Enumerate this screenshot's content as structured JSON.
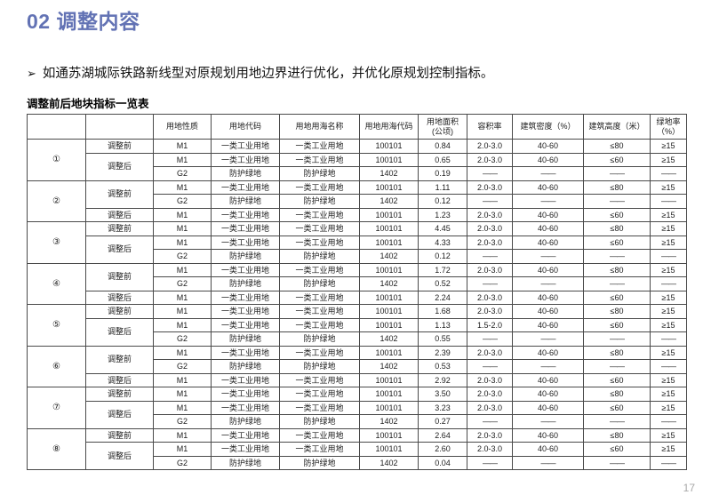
{
  "slide": {
    "title": "02 调整内容",
    "bullet_char": "➢",
    "bullet_text": "如通苏湖城际铁路新线型对原规划用地边界进行优化，并优化原规划控制指标。",
    "table_title": "调整前后地块指标一览表",
    "page_number": "17"
  },
  "colors": {
    "title_blue": "#6272b4",
    "table_border": "#4a4a4a",
    "page_number_gray": "#a8a8a8",
    "background": "#ffffff"
  },
  "table": {
    "headers": [
      "",
      "",
      "用地性质",
      "用地代码",
      "用地用海名称",
      "用地用海代码",
      "用地面积\n(公顷)",
      "容积率",
      "建筑密度（%）",
      "建筑高度（米）",
      "绿地率\n（%）"
    ],
    "dash": "——",
    "groups": [
      {
        "id": "①",
        "sections": [
          {
            "label": "调整前",
            "rows": [
              [
                "M1",
                "一类工业用地",
                "一类工业用地",
                "100101",
                "0.84",
                "2.0-3.0",
                "40-60",
                "≤80",
                "≥15"
              ]
            ]
          },
          {
            "label": "调整后",
            "rows": [
              [
                "M1",
                "一类工业用地",
                "一类工业用地",
                "100101",
                "0.65",
                "2.0-3.0",
                "40-60",
                "≤60",
                "≥15"
              ],
              [
                "G2",
                "防护绿地",
                "防护绿地",
                "1402",
                "0.19",
                "——",
                "——",
                "——",
                "——"
              ]
            ]
          }
        ]
      },
      {
        "id": "②",
        "sections": [
          {
            "label": "调整前",
            "rows": [
              [
                "M1",
                "一类工业用地",
                "一类工业用地",
                "100101",
                "1.11",
                "2.0-3.0",
                "40-60",
                "≤80",
                "≥15"
              ],
              [
                "G2",
                "防护绿地",
                "防护绿地",
                "1402",
                "0.12",
                "——",
                "——",
                "——",
                "——"
              ]
            ]
          },
          {
            "label": "调整后",
            "rows": [
              [
                "M1",
                "一类工业用地",
                "一类工业用地",
                "100101",
                "1.23",
                "2.0-3.0",
                "40-60",
                "≤60",
                "≥15"
              ]
            ]
          }
        ]
      },
      {
        "id": "③",
        "sections": [
          {
            "label": "调整前",
            "rows": [
              [
                "M1",
                "一类工业用地",
                "一类工业用地",
                "100101",
                "4.45",
                "2.0-3.0",
                "40-60",
                "≤80",
                "≥15"
              ]
            ]
          },
          {
            "label": "调整后",
            "rows": [
              [
                "M1",
                "一类工业用地",
                "一类工业用地",
                "100101",
                "4.33",
                "2.0-3.0",
                "40-60",
                "≤60",
                "≥15"
              ],
              [
                "G2",
                "防护绿地",
                "防护绿地",
                "1402",
                "0.12",
                "——",
                "——",
                "——",
                "——"
              ]
            ]
          }
        ]
      },
      {
        "id": "④",
        "sections": [
          {
            "label": "调整前",
            "rows": [
              [
                "M1",
                "一类工业用地",
                "一类工业用地",
                "100101",
                "1.72",
                "2.0-3.0",
                "40-60",
                "≤80",
                "≥15"
              ],
              [
                "G2",
                "防护绿地",
                "防护绿地",
                "1402",
                "0.52",
                "——",
                "——",
                "——",
                "——"
              ]
            ]
          },
          {
            "label": "调整后",
            "rows": [
              [
                "M1",
                "一类工业用地",
                "一类工业用地",
                "100101",
                "2.24",
                "2.0-3.0",
                "40-60",
                "≤60",
                "≥15"
              ]
            ]
          }
        ]
      },
      {
        "id": "⑤",
        "sections": [
          {
            "label": "调整前",
            "rows": [
              [
                "M1",
                "一类工业用地",
                "一类工业用地",
                "100101",
                "1.68",
                "2.0-3.0",
                "40-60",
                "≤80",
                "≥15"
              ]
            ]
          },
          {
            "label": "调整后",
            "rows": [
              [
                "M1",
                "一类工业用地",
                "一类工业用地",
                "100101",
                "1.13",
                "1.5-2.0",
                "40-60",
                "≤60",
                "≥15"
              ],
              [
                "G2",
                "防护绿地",
                "防护绿地",
                "1402",
                "0.55",
                "——",
                "——",
                "——",
                "——"
              ]
            ]
          }
        ]
      },
      {
        "id": "⑥",
        "sections": [
          {
            "label": "调整前",
            "rows": [
              [
                "M1",
                "一类工业用地",
                "一类工业用地",
                "100101",
                "2.39",
                "2.0-3.0",
                "40-60",
                "≤80",
                "≥15"
              ],
              [
                "G2",
                "防护绿地",
                "防护绿地",
                "1402",
                "0.53",
                "——",
                "——",
                "——",
                "——"
              ]
            ]
          },
          {
            "label": "调整后",
            "rows": [
              [
                "M1",
                "一类工业用地",
                "一类工业用地",
                "100101",
                "2.92",
                "2.0-3.0",
                "40-60",
                "≤60",
                "≥15"
              ]
            ]
          }
        ]
      },
      {
        "id": "⑦",
        "sections": [
          {
            "label": "调整前",
            "rows": [
              [
                "M1",
                "一类工业用地",
                "一类工业用地",
                "100101",
                "3.50",
                "2.0-3.0",
                "40-60",
                "≤80",
                "≥15"
              ]
            ]
          },
          {
            "label": "调整后",
            "rows": [
              [
                "M1",
                "一类工业用地",
                "一类工业用地",
                "100101",
                "3.23",
                "2.0-3.0",
                "40-60",
                "≤60",
                "≥15"
              ],
              [
                "G2",
                "防护绿地",
                "防护绿地",
                "1402",
                "0.27",
                "——",
                "——",
                "——",
                "——"
              ]
            ]
          }
        ]
      },
      {
        "id": "⑧",
        "sections": [
          {
            "label": "调整前",
            "rows": [
              [
                "M1",
                "一类工业用地",
                "一类工业用地",
                "100101",
                "2.64",
                "2.0-3.0",
                "40-60",
                "≤80",
                "≥15"
              ]
            ]
          },
          {
            "label": "调整后",
            "rows": [
              [
                "M1",
                "一类工业用地",
                "一类工业用地",
                "100101",
                "2.60",
                "2.0-3.0",
                "40-60",
                "≤60",
                "≥15"
              ],
              [
                "G2",
                "防护绿地",
                "防护绿地",
                "1402",
                "0.04",
                "——",
                "——",
                "——",
                "——"
              ]
            ]
          }
        ]
      }
    ]
  }
}
